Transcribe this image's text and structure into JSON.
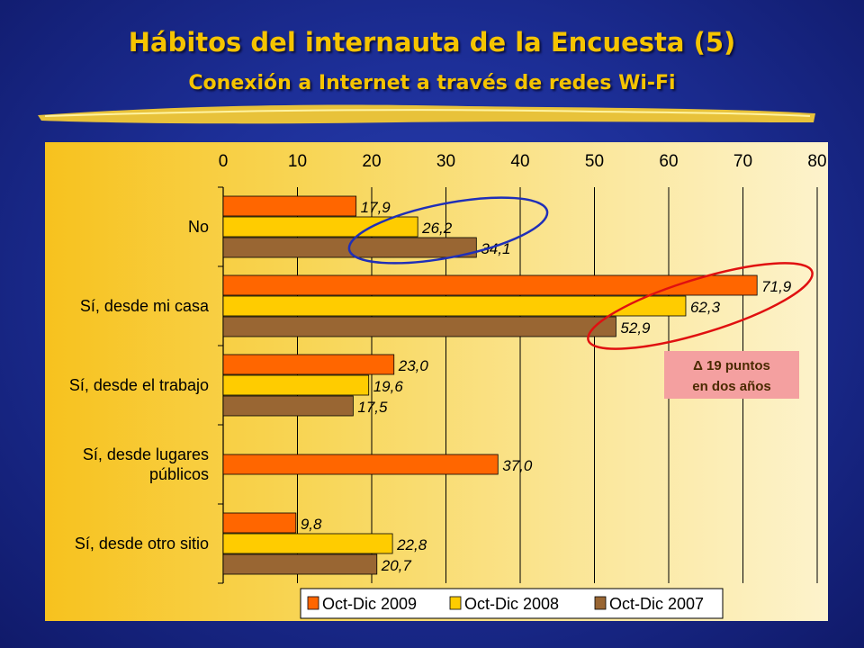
{
  "header": {
    "title": "Hábitos del internauta de la Encuesta (5)",
    "subtitle": "Conexión a Internet a través de redes Wi-Fi"
  },
  "annotation": {
    "line1": "Δ 19 puntos",
    "line2": "en dos años"
  },
  "colors": {
    "title": "#f5c400",
    "series_2009": "#ff6600",
    "series_2008": "#ffcc00",
    "series_2007": "#996633",
    "highlight_blue": "#1f2fb8",
    "highlight_red": "#e01010",
    "annotation_bg": "#f4a0a0"
  },
  "chart_data": {
    "type": "bar",
    "orientation": "horizontal",
    "categories": [
      "No",
      "Sí, desde mi casa",
      "Sí, desde el trabajo",
      "Sí, desde lugares públicos",
      "Sí, desde otro sitio"
    ],
    "category_lines": [
      [
        "No"
      ],
      [
        "Sí, desde mi casa"
      ],
      [
        "Sí, desde el trabajo"
      ],
      [
        "Sí, desde lugares",
        "públicos"
      ],
      [
        "Sí, desde otro sitio"
      ]
    ],
    "series": [
      {
        "name": "Oct-Dic 2009",
        "values": [
          17.9,
          71.9,
          23.0,
          37.0,
          9.8
        ],
        "labels": [
          "17,9",
          "71,9",
          "23,0",
          "37,0",
          "9,8"
        ]
      },
      {
        "name": "Oct-Dic 2008",
        "values": [
          26.2,
          62.3,
          19.6,
          null,
          22.8
        ],
        "labels": [
          "26,2",
          "62,3",
          "19,6",
          "",
          "22,8"
        ]
      },
      {
        "name": "Oct-Dic 2007",
        "values": [
          34.1,
          52.9,
          17.5,
          null,
          20.7
        ],
        "labels": [
          "34,1",
          "52,9",
          "17,5",
          "",
          "20,7"
        ]
      }
    ],
    "xlim": [
      0,
      80
    ],
    "xticks": [
      0,
      10,
      20,
      30,
      40,
      50,
      60,
      70,
      80
    ],
    "grid": "vertical",
    "axis_position": "top",
    "legend_position": "bottom",
    "highlights": [
      "No",
      "Sí, desde mi casa"
    ]
  }
}
